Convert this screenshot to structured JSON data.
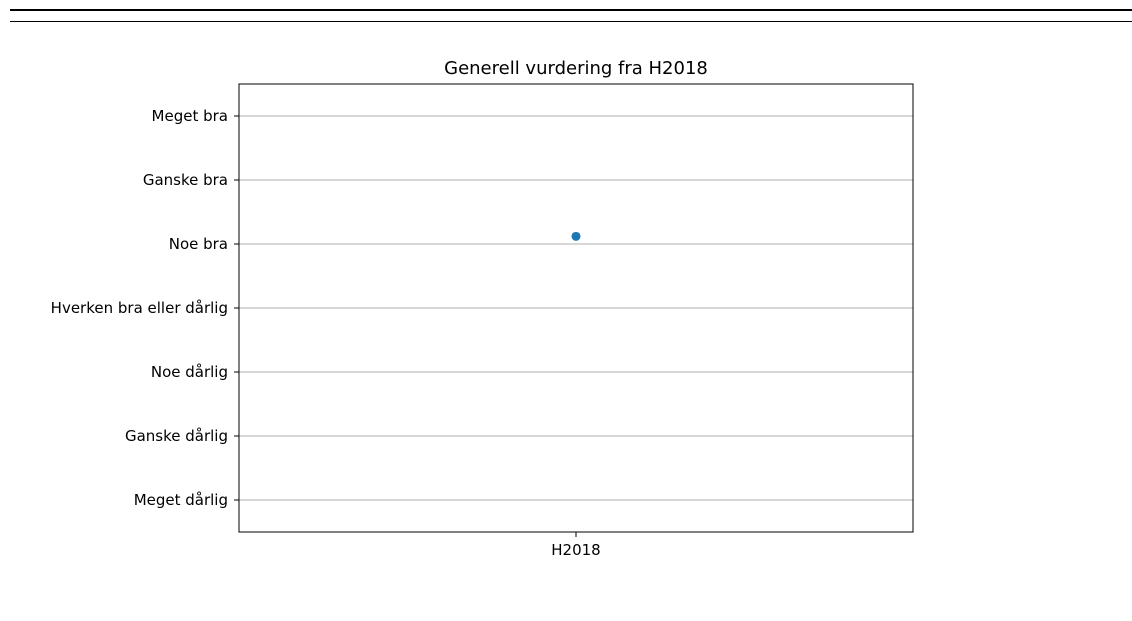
{
  "chart_data": {
    "type": "scatter",
    "title": "Generell vurdering fra H2018",
    "xlabel": "",
    "ylabel": "",
    "categories": [
      "H2018"
    ],
    "y_categories": [
      "Meget dårlig",
      "Ganske dårlig",
      "Noe dårlig",
      "Hverken bra eller dårlig",
      "Noe bra",
      "Ganske bra",
      "Meget bra"
    ],
    "y_scale": {
      "Meget dårlig": 1,
      "Ganske dårlig": 2,
      "Noe dårlig": 3,
      "Hverken bra eller dårlig": 4,
      "Noe bra": 5,
      "Ganske bra": 6,
      "Meget bra": 7
    },
    "series": [
      {
        "x": [
          "H2018"
        ],
        "values": [
          5.12
        ],
        "color": "#1f77b4"
      }
    ],
    "ylim": [
      0.5,
      7.5
    ],
    "grid": "horizontal",
    "legend": "none"
  }
}
